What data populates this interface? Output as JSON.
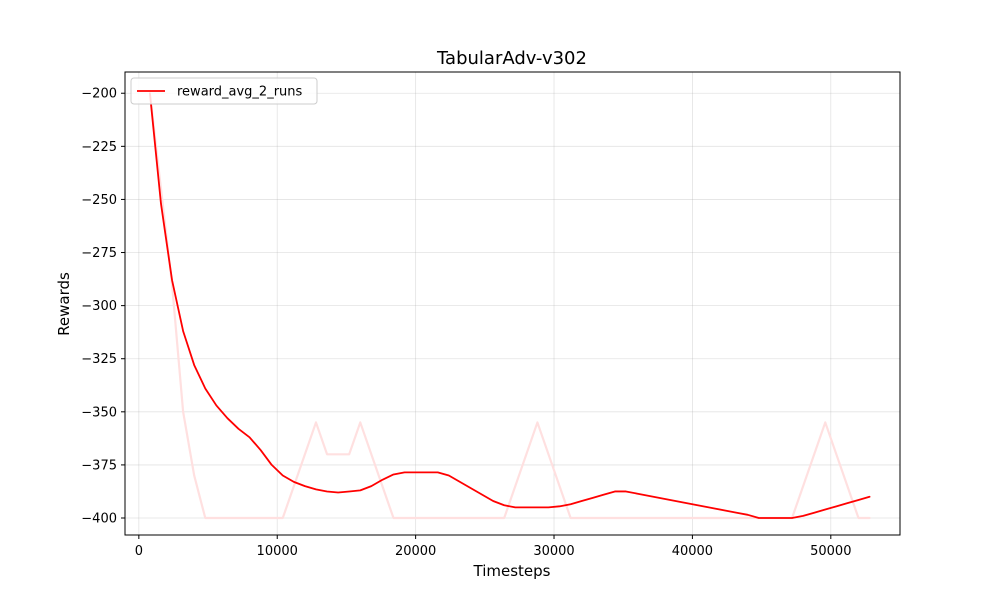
{
  "chart_data": {
    "type": "line",
    "title": "TabularAdv-v302",
    "xlabel": "Timesteps",
    "ylabel": "Rewards",
    "xlim": [
      -1000,
      55000
    ],
    "ylim": [
      -408,
      -190
    ],
    "xticks": [
      0,
      10000,
      20000,
      30000,
      40000,
      50000
    ],
    "yticks": [
      -200,
      -225,
      -250,
      -275,
      -300,
      -325,
      -350,
      -375,
      -400
    ],
    "grid": true,
    "legend_position": "top-left",
    "series": [
      {
        "name": "reward_avg_2_runs",
        "color": "#ff0000",
        "in_legend": true,
        "x": [
          800,
          1600,
          2400,
          3200,
          4000,
          4800,
          5600,
          6400,
          7200,
          8000,
          8800,
          9600,
          10400,
          11200,
          12000,
          12800,
          13600,
          14400,
          15200,
          16000,
          16800,
          17600,
          18400,
          19200,
          20000,
          20800,
          21600,
          22400,
          23200,
          24000,
          24800,
          25600,
          26400,
          27200,
          28000,
          28800,
          29600,
          30400,
          31200,
          32000,
          32800,
          33600,
          34400,
          35200,
          36000,
          36800,
          37600,
          38400,
          39200,
          40000,
          40800,
          41600,
          42400,
          43200,
          44000,
          44800,
          45600,
          46400,
          47200,
          48000,
          48800,
          49600,
          50400,
          51200,
          52000,
          52800
        ],
        "y": [
          -200,
          -252,
          -288,
          -312,
          -328,
          -339,
          -347,
          -353,
          -358,
          -362,
          -368,
          -375,
          -380,
          -383,
          -385,
          -386.5,
          -387.5,
          -388,
          -387.5,
          -387,
          -385,
          -382,
          -379.5,
          -378.5,
          -378.5,
          -378.5,
          -378.5,
          -380,
          -383,
          -386,
          -389,
          -392,
          -394,
          -395,
          -395,
          -395,
          -395,
          -394.5,
          -393.5,
          -392,
          -390.5,
          -389,
          -387.5,
          -387.5,
          -388.5,
          -389.5,
          -390.5,
          -391.5,
          -392.5,
          -393.5,
          -394.5,
          -395.5,
          -396.5,
          -397.5,
          -398.5,
          -400,
          -400,
          -400,
          -400,
          -399,
          -397.5,
          -396,
          -394.5,
          -393,
          -391.5,
          -390
        ]
      },
      {
        "name": "",
        "color": "#ffe0e0",
        "in_legend": false,
        "x": [
          800,
          2400,
          3200,
          4000,
          4800,
          5600,
          10400,
          12800,
          13600,
          15200,
          16000,
          18400,
          26400,
          28800,
          31200,
          47200,
          49600,
          52000,
          52800
        ],
        "y": [
          -200,
          -290,
          -350,
          -380,
          -400,
          -400,
          -400,
          -355,
          -370,
          -370,
          -355,
          -400,
          -400,
          -355,
          -400,
          -400,
          -355,
          -400,
          -400
        ]
      }
    ]
  }
}
